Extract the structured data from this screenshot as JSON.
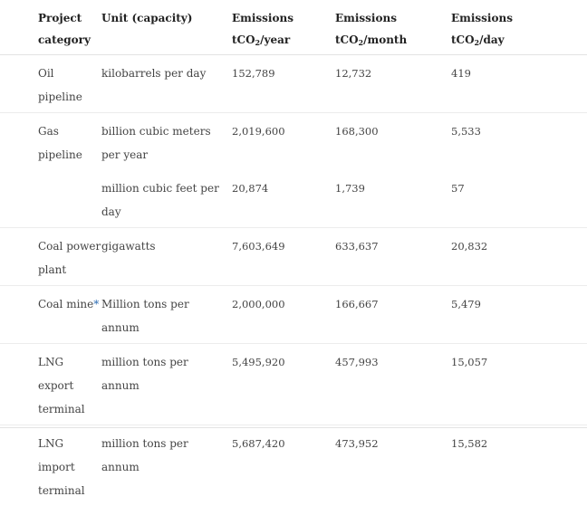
{
  "table": {
    "headers": {
      "category": "Project category",
      "unit": "Unit (capacity)",
      "year_line1": "Emissions",
      "year_line2_prefix": "tCO",
      "year_line2_sub": "2",
      "year_line2_suffix": "/year",
      "month_line1": "Emissions",
      "month_line2_prefix": "tCO",
      "month_line2_sub": "2",
      "month_line2_suffix": "/month",
      "day_line1": "Emissions",
      "day_line2_prefix": "tCO",
      "day_line2_sub": "2",
      "day_line2_suffix": "/day"
    },
    "rows": [
      {
        "category": "Oil pipeline",
        "unit": "kilobarrels per day",
        "year": "152,789",
        "month": "12,732",
        "day": "419"
      },
      {
        "category": "Gas pipeline",
        "unit": "billion cubic meters per year",
        "year": "2,019,600",
        "month": "168,300",
        "day": "5,533"
      },
      {
        "category": "",
        "unit": "million cubic feet per day",
        "year": "20,874",
        "month": "1,739",
        "day": "57"
      },
      {
        "category": "Coal power plant",
        "unit": "gigawatts",
        "year": "7,603,649",
        "month": "633,637",
        "day": "20,832"
      },
      {
        "category": "Coal mine",
        "category_mark": "*",
        "unit": "Million tons per annum",
        "year": "2,000,000",
        "month": "166,667",
        "day": "5,479"
      },
      {
        "category": "LNG export terminal",
        "unit": "million tons per annum",
        "year": "5,495,920",
        "month": "457,993",
        "day": "15,057"
      },
      {
        "category": "LNG import terminal",
        "unit": "million tons per annum",
        "year": "5,687,420",
        "month": "473,952",
        "day": "15,582"
      }
    ]
  }
}
